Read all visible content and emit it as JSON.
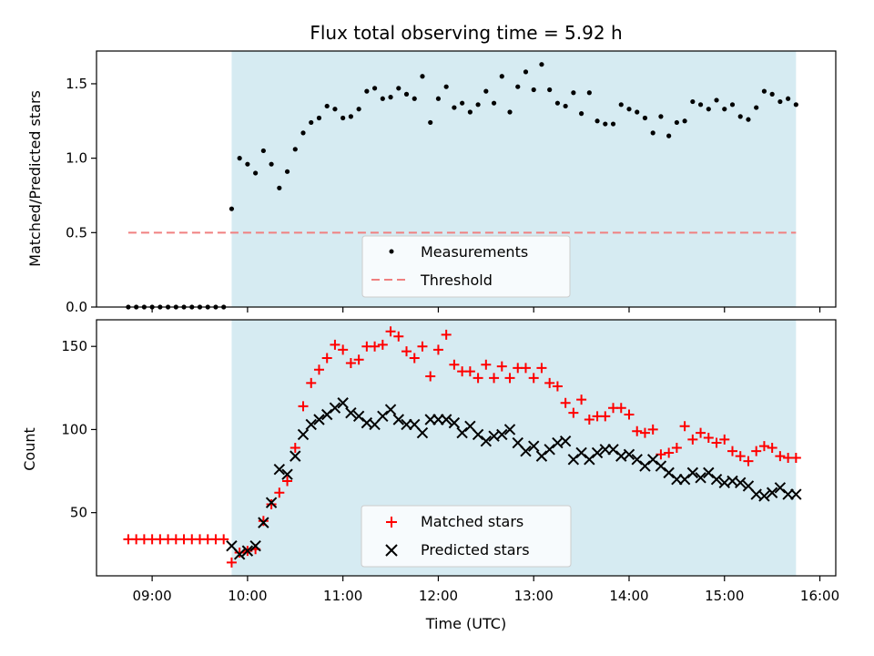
{
  "chart_data": [
    {
      "type": "scatter",
      "title": "Flux total observing time = 5.92 h",
      "xlabel": "",
      "ylabel": "Matched/Predicted stars",
      "xlim": [
        "08:25",
        "16:10"
      ],
      "ylim": [
        0,
        1.72
      ],
      "yticks": [
        0.0,
        0.5,
        1.0,
        1.5
      ],
      "yticklabels": [
        "0.0",
        "0.5",
        "1.0",
        "1.5"
      ],
      "shaded_region": {
        "x": [
          "09:50",
          "15:45"
        ],
        "color": "#add8e6"
      },
      "threshold": {
        "name": "Threshold",
        "y": 0.5,
        "x": [
          "08:45",
          "15:45"
        ],
        "color": "#f08080"
      },
      "legend": {
        "position": "lower-center",
        "entries": [
          "Measurements",
          "Threshold"
        ]
      },
      "series": [
        {
          "name": "Measurements",
          "marker": "dot",
          "color": "#000000",
          "x": [
            "08:45",
            "08:50",
            "08:55",
            "09:00",
            "09:05",
            "09:10",
            "09:15",
            "09:20",
            "09:25",
            "09:30",
            "09:35",
            "09:40",
            "09:45",
            "09:50",
            "09:55",
            "10:00",
            "10:05",
            "10:10",
            "10:15",
            "10:20",
            "10:25",
            "10:30",
            "10:35",
            "10:40",
            "10:45",
            "10:50",
            "10:55",
            "11:00",
            "11:05",
            "11:10",
            "11:15",
            "11:20",
            "11:25",
            "11:30",
            "11:35",
            "11:40",
            "11:45",
            "11:50",
            "11:55",
            "12:00",
            "12:05",
            "12:10",
            "12:15",
            "12:20",
            "12:25",
            "12:30",
            "12:35",
            "12:40",
            "12:45",
            "12:50",
            "12:55",
            "13:00",
            "13:05",
            "13:10",
            "13:15",
            "13:20",
            "13:25",
            "13:30",
            "13:35",
            "13:40",
            "13:45",
            "13:50",
            "13:55",
            "14:00",
            "14:05",
            "14:10",
            "14:15",
            "14:20",
            "14:25",
            "14:30",
            "14:35",
            "14:40",
            "14:45",
            "14:50",
            "14:55",
            "15:00",
            "15:05",
            "15:10",
            "15:15",
            "15:20",
            "15:25",
            "15:30",
            "15:35",
            "15:40",
            "15:45"
          ],
          "y": [
            0,
            0,
            0,
            0,
            0,
            0,
            0,
            0,
            0,
            0,
            0,
            0,
            0,
            0.66,
            1.0,
            0.96,
            0.9,
            1.05,
            0.96,
            0.8,
            0.91,
            1.06,
            1.17,
            1.24,
            1.27,
            1.35,
            1.33,
            1.27,
            1.28,
            1.33,
            1.45,
            1.47,
            1.4,
            1.41,
            1.47,
            1.43,
            1.4,
            1.55,
            1.24,
            1.4,
            1.48,
            1.34,
            1.37,
            1.31,
            1.36,
            1.45,
            1.37,
            1.55,
            1.31,
            1.48,
            1.58,
            1.46,
            1.63,
            1.46,
            1.37,
            1.35,
            1.44,
            1.3,
            1.44,
            1.25,
            1.23,
            1.23,
            1.36,
            1.33,
            1.31,
            1.27,
            1.17,
            1.28,
            1.15,
            1.24,
            1.25,
            1.38,
            1.36,
            1.33,
            1.39,
            1.33,
            1.36,
            1.28,
            1.26,
            1.34,
            1.45,
            1.43,
            1.38,
            1.4,
            1.36
          ]
        }
      ]
    },
    {
      "type": "scatter",
      "title": "",
      "xlabel": "Time (UTC)",
      "ylabel": "Count",
      "xlim": [
        "08:25",
        "16:10"
      ],
      "ylim": [
        12,
        166
      ],
      "xticks": [
        "09:00",
        "10:00",
        "11:00",
        "12:00",
        "13:00",
        "14:00",
        "15:00",
        "16:00"
      ],
      "yticks": [
        50,
        100,
        150
      ],
      "yticklabels": [
        "50",
        "100",
        "150"
      ],
      "shaded_region": {
        "x": [
          "09:50",
          "15:45"
        ],
        "color": "#add8e6"
      },
      "legend": {
        "position": "lower-center",
        "entries": [
          "Matched stars",
          "Predicted stars"
        ]
      },
      "series": [
        {
          "name": "Matched stars",
          "marker": "plus",
          "color": "#ff0000",
          "x": [
            "08:45",
            "08:50",
            "08:55",
            "09:00",
            "09:05",
            "09:10",
            "09:15",
            "09:20",
            "09:25",
            "09:30",
            "09:35",
            "09:40",
            "09:45",
            "09:50",
            "09:55",
            "10:00",
            "10:05",
            "10:10",
            "10:15",
            "10:20",
            "10:25",
            "10:30",
            "10:35",
            "10:40",
            "10:45",
            "10:50",
            "10:55",
            "11:00",
            "11:05",
            "11:10",
            "11:15",
            "11:20",
            "11:25",
            "11:30",
            "11:35",
            "11:40",
            "11:45",
            "11:50",
            "11:55",
            "12:00",
            "12:05",
            "12:10",
            "12:15",
            "12:20",
            "12:25",
            "12:30",
            "12:35",
            "12:40",
            "12:45",
            "12:50",
            "12:55",
            "13:00",
            "13:05",
            "13:10",
            "13:15",
            "13:20",
            "13:25",
            "13:30",
            "13:35",
            "13:40",
            "13:45",
            "13:50",
            "13:55",
            "14:00",
            "14:05",
            "14:10",
            "14:15",
            "14:20",
            "14:25",
            "14:30",
            "14:35",
            "14:40",
            "14:45",
            "14:50",
            "14:55",
            "15:00",
            "15:05",
            "15:10",
            "15:15",
            "15:20",
            "15:25",
            "15:30",
            "15:35",
            "15:40",
            "15:45"
          ],
          "y": [
            34,
            34,
            34,
            34,
            34,
            34,
            34,
            34,
            34,
            34,
            34,
            34,
            34,
            20,
            26,
            27,
            28,
            45,
            55,
            62,
            69,
            89,
            114,
            128,
            136,
            143,
            151,
            148,
            140,
            142,
            150,
            150,
            151,
            159,
            156,
            147,
            143,
            150,
            132,
            148,
            157,
            139,
            135,
            135,
            131,
            139,
            131,
            138,
            131,
            137,
            137,
            131,
            137,
            128,
            126,
            116,
            110,
            118,
            106,
            108,
            108,
            113,
            113,
            109,
            99,
            98,
            100,
            85,
            86,
            89,
            102,
            94,
            98,
            95,
            92,
            94,
            87,
            84,
            81,
            87,
            90,
            89,
            84,
            83,
            83
          ]
        },
        {
          "name": "Predicted stars",
          "marker": "x",
          "color": "#000000",
          "x": [
            "09:50",
            "09:55",
            "10:00",
            "10:05",
            "10:10",
            "10:15",
            "10:20",
            "10:25",
            "10:30",
            "10:35",
            "10:40",
            "10:45",
            "10:50",
            "10:55",
            "11:00",
            "11:05",
            "11:10",
            "11:15",
            "11:20",
            "11:25",
            "11:30",
            "11:35",
            "11:40",
            "11:45",
            "11:50",
            "11:55",
            "12:00",
            "12:05",
            "12:10",
            "12:15",
            "12:20",
            "12:25",
            "12:30",
            "12:35",
            "12:40",
            "12:45",
            "12:50",
            "12:55",
            "13:00",
            "13:05",
            "13:10",
            "13:15",
            "13:20",
            "13:25",
            "13:30",
            "13:35",
            "13:40",
            "13:45",
            "13:50",
            "13:55",
            "14:00",
            "14:05",
            "14:10",
            "14:15",
            "14:20",
            "14:25",
            "14:30",
            "14:35",
            "14:40",
            "14:45",
            "14:50",
            "14:55",
            "15:00",
            "15:05",
            "15:10",
            "15:15",
            "15:20",
            "15:25",
            "15:30",
            "15:35",
            "15:40",
            "15:45"
          ],
          "y": [
            30,
            25,
            27,
            30,
            44,
            56,
            76,
            73,
            84,
            97,
            103,
            106,
            109,
            113,
            116,
            110,
            108,
            104,
            103,
            108,
            112,
            106,
            103,
            103,
            98,
            106,
            106,
            106,
            104,
            98,
            102,
            97,
            93,
            96,
            97,
            100,
            92,
            87,
            90,
            84,
            88,
            92,
            93,
            82,
            86,
            82,
            86,
            88,
            88,
            84,
            85,
            82,
            78,
            82,
            78,
            74,
            70,
            70,
            74,
            71,
            74,
            70,
            68,
            69,
            68,
            66,
            61,
            60,
            62,
            65,
            61,
            61
          ]
        }
      ]
    }
  ]
}
